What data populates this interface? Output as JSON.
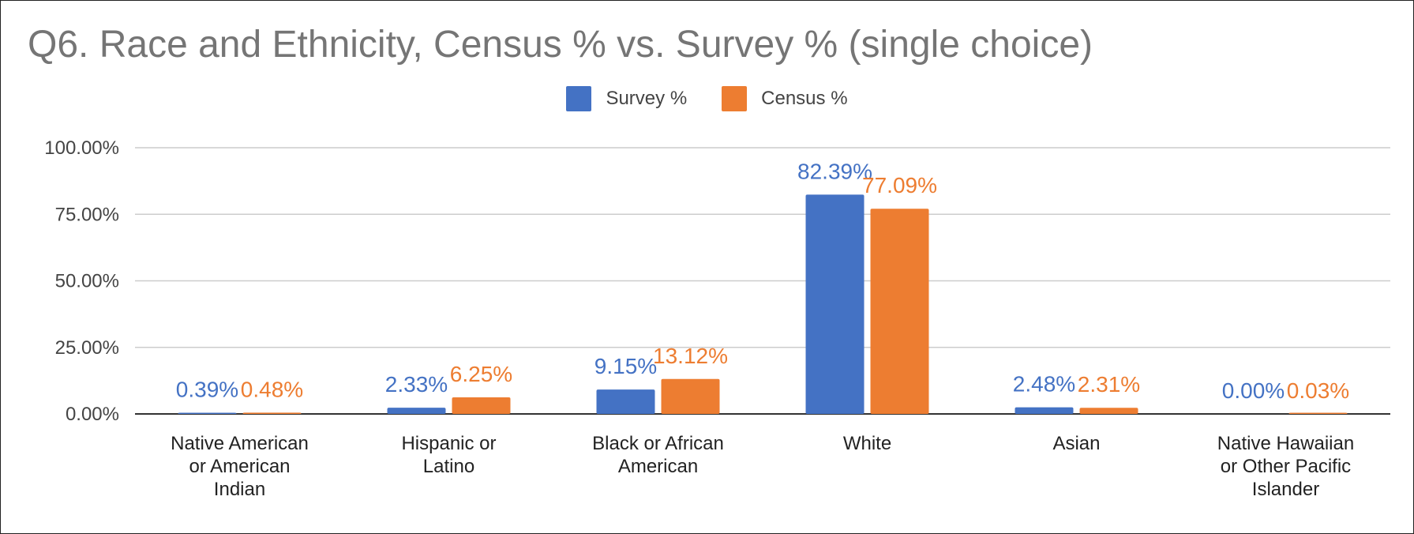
{
  "chart_data": {
    "type": "bar",
    "title": "Q6. Race and Ethnicity, Census % vs. Survey % (single choice)",
    "categories": [
      [
        "Native American",
        "or American",
        "Indian"
      ],
      [
        "Hispanic or",
        "Latino"
      ],
      [
        "Black or African",
        "American"
      ],
      [
        "White"
      ],
      [
        "Asian"
      ],
      [
        "Native Hawaiian",
        "or Other Pacific",
        "Islander"
      ]
    ],
    "series": [
      {
        "name": "Survey %",
        "color": "#4472C4",
        "values": [
          0.39,
          2.33,
          9.15,
          82.39,
          2.48,
          0.0
        ],
        "labels": [
          "0.39%",
          "2.33%",
          "9.15%",
          "82.39%",
          "2.48%",
          "0.00%"
        ]
      },
      {
        "name": "Census %",
        "color": "#ED7D31",
        "values": [
          0.48,
          6.25,
          13.12,
          77.09,
          2.31,
          0.03
        ],
        "labels": [
          "0.48%",
          "6.25%",
          "13.12%",
          "77.09%",
          "2.31%",
          "0.03%"
        ]
      }
    ],
    "yticks": [
      {
        "value": 0,
        "label": "0.00%"
      },
      {
        "value": 25,
        "label": "25.00%"
      },
      {
        "value": 50,
        "label": "50.00%"
      },
      {
        "value": 75,
        "label": "75.00%"
      },
      {
        "value": 100,
        "label": "100.00%"
      }
    ],
    "ylim": [
      0,
      100
    ],
    "xlabel": "",
    "ylabel": "",
    "grid": true,
    "legend_position": "top-center"
  }
}
